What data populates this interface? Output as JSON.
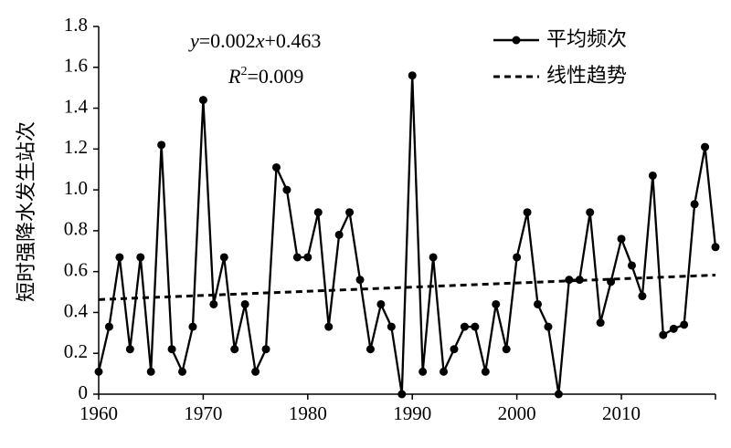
{
  "chart_data": {
    "type": "line",
    "ylabel": "短时强降水发生站次",
    "xlim": [
      1960,
      2019
    ],
    "ylim": [
      0,
      1.8
    ],
    "x_ticks": [
      "1960",
      "1970",
      "1980",
      "1990",
      "2000",
      "2010"
    ],
    "y_ticks": [
      "0",
      "0.2",
      "0.4",
      "0.6",
      "0.8",
      "1.0",
      "1.2",
      "1.4",
      "1.6",
      "1.8"
    ],
    "legend_position": "top-right",
    "series": [
      {
        "name": "平均频次",
        "style": "solid-with-markers",
        "x": [
          1960,
          1961,
          1962,
          1963,
          1964,
          1965,
          1966,
          1967,
          1968,
          1969,
          1970,
          1971,
          1972,
          1973,
          1974,
          1975,
          1976,
          1977,
          1978,
          1979,
          1980,
          1981,
          1982,
          1983,
          1984,
          1985,
          1986,
          1987,
          1988,
          1989,
          1990,
          1991,
          1992,
          1993,
          1994,
          1995,
          1996,
          1997,
          1998,
          1999,
          2000,
          2001,
          2002,
          2003,
          2004,
          2005,
          2006,
          2007,
          2008,
          2009,
          2010,
          2011,
          2012,
          2013,
          2014,
          2015,
          2016,
          2017,
          2018,
          2019
        ],
        "values": [
          0.11,
          0.33,
          0.67,
          0.22,
          0.67,
          0.11,
          1.22,
          0.22,
          0.11,
          0.33,
          1.44,
          0.44,
          0.67,
          0.22,
          0.44,
          0.11,
          0.22,
          1.11,
          1.0,
          0.67,
          0.67,
          0.89,
          0.33,
          0.78,
          0.89,
          0.56,
          0.22,
          0.44,
          0.33,
          0.0,
          1.56,
          0.11,
          0.67,
          0.11,
          0.22,
          0.33,
          0.33,
          0.11,
          0.44,
          0.22,
          0.67,
          0.89,
          0.44,
          0.33,
          0.0,
          0.56,
          0.56,
          0.89,
          0.35,
          0.55,
          0.76,
          0.63,
          0.48,
          1.07,
          0.29,
          0.32,
          0.34,
          0.93,
          1.21,
          0.72
        ]
      },
      {
        "name": "线性趋势",
        "style": "dashed",
        "x": [
          1960,
          2019
        ],
        "values": [
          0.463,
          0.583
        ]
      }
    ],
    "annotations": {
      "equation_y": "y",
      "equation_eq": "=0.002",
      "equation_x": "x",
      "equation_rest": "+0.463",
      "r2_prefix": "R",
      "r2_sup": "2",
      "r2_value": "=0.009"
    }
  }
}
